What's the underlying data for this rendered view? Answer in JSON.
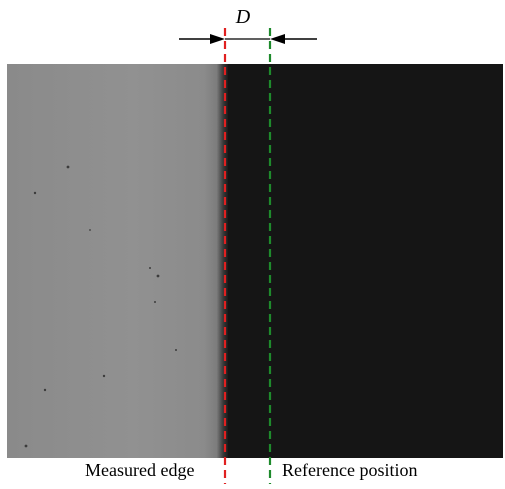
{
  "dimension_label": "D",
  "captions": {
    "measured_edge": "Measured edge",
    "reference_position": "Reference position"
  },
  "colors": {
    "measured_line": "#e02020",
    "reference_line": "#1e8a2c",
    "bright_region": "#8e8e8e",
    "dark_region": "#151515",
    "arrow": "#000000"
  }
}
